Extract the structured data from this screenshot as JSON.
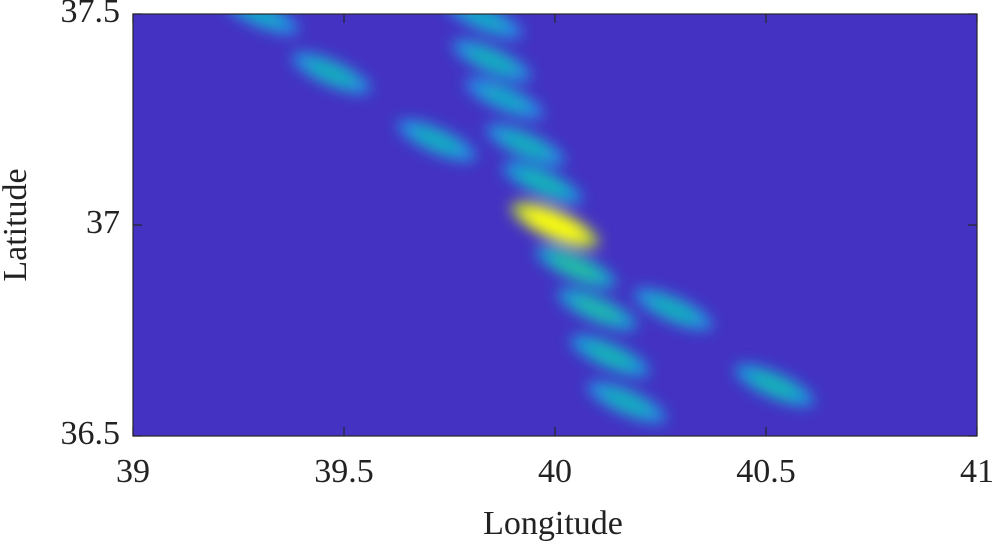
{
  "chart_data": {
    "type": "heatmap",
    "colormap": "parula",
    "clim": [
      0,
      1
    ],
    "xlabel": "Longitude",
    "ylabel": "Latitude",
    "xlim": [
      39,
      41
    ],
    "ylim": [
      36.5,
      37.5
    ],
    "xticks": [
      39,
      39.5,
      40,
      40.5,
      41
    ],
    "yticks": [
      36.5,
      37,
      37.5
    ],
    "x": [
      39.83,
      39.85,
      39.88,
      39.93,
      39.97,
      40.0,
      40.05,
      40.1,
      40.13,
      40.17,
      39.3,
      39.47,
      39.72,
      40.28,
      40.52
    ],
    "y": [
      37.49,
      37.39,
      37.3,
      37.19,
      37.1,
      37.0,
      36.9,
      36.8,
      36.69,
      36.58,
      37.5,
      37.36,
      37.2,
      36.8,
      36.62
    ],
    "values": [
      0.45,
      0.48,
      0.45,
      0.48,
      0.5,
      1.0,
      0.55,
      0.52,
      0.5,
      0.48,
      0.45,
      0.48,
      0.47,
      0.48,
      0.5
    ]
  }
}
